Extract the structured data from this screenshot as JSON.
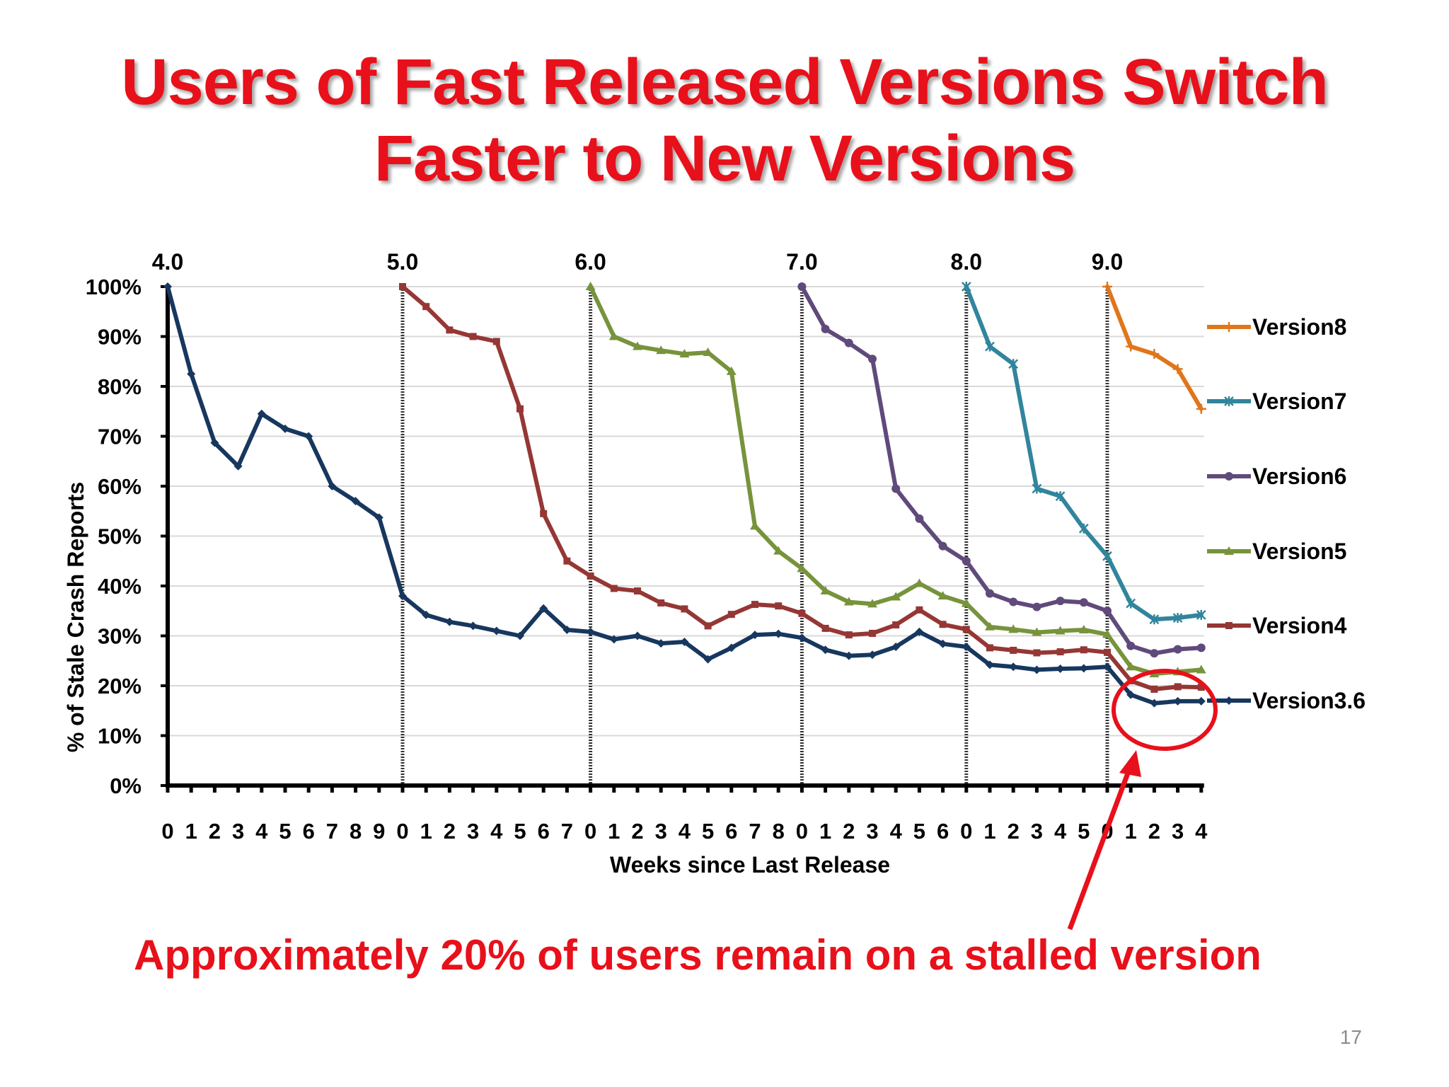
{
  "slide": {
    "title_line1": "Users of Fast Released Versions Switch",
    "title_line2": "Faster to New Versions",
    "annotation": "Approximately 20% of users remain on a stalled version",
    "slide_number": "17"
  },
  "colors": {
    "title": "#e8101a",
    "annotation": "#e8101a",
    "Version8": "#e0761c",
    "Version7": "#31859c",
    "Version6": "#604a7b",
    "Version5": "#77933c",
    "Version4": "#953735",
    "Version3.6": "#17375e"
  },
  "chart_data": {
    "type": "line",
    "title": "",
    "xlabel": "Weeks since Last Release",
    "ylabel": "% of Stale Crash Reports",
    "ylim": [
      0,
      100
    ],
    "yticks": [
      "0%",
      "10%",
      "20%",
      "30%",
      "40%",
      "50%",
      "60%",
      "70%",
      "80%",
      "90%",
      "100%"
    ],
    "x_tick_labels": [
      "0",
      "1",
      "2",
      "3",
      "4",
      "5",
      "6",
      "7",
      "8",
      "9",
      "0",
      "1",
      "2",
      "3",
      "4",
      "5",
      "6",
      "7",
      "0",
      "1",
      "2",
      "3",
      "4",
      "5",
      "6",
      "7",
      "8",
      "0",
      "1",
      "2",
      "3",
      "4",
      "5",
      "6",
      "0",
      "1",
      "2",
      "3",
      "4",
      "5",
      "0",
      "1",
      "2",
      "3",
      "4"
    ],
    "releases": [
      {
        "label": "4.0",
        "x": 0
      },
      {
        "label": "5.0",
        "x": 10
      },
      {
        "label": "6.0",
        "x": 18
      },
      {
        "label": "7.0",
        "x": 27
      },
      {
        "label": "8.0",
        "x": 34
      },
      {
        "label": "9.0",
        "x": 40
      }
    ],
    "grid": true,
    "legend_position": "right",
    "series": [
      {
        "name": "Version8",
        "start": 40,
        "marker": "plus",
        "values": [
          100,
          88,
          86.5,
          83.5,
          75.5
        ]
      },
      {
        "name": "Version7",
        "start": 34,
        "marker": "star",
        "values": [
          100,
          88,
          84.5,
          59.5,
          58,
          51.5,
          46,
          36.5,
          33.3,
          33.6,
          34.2
        ]
      },
      {
        "name": "Version6",
        "start": 27,
        "marker": "circle",
        "values": [
          100,
          91.5,
          88.7,
          85.5,
          59.5,
          53.5,
          48,
          45,
          38.5,
          36.8,
          35.8,
          37,
          36.7,
          35,
          28,
          26.5,
          27.3,
          27.6
        ]
      },
      {
        "name": "Version5",
        "start": 18,
        "marker": "triangle",
        "values": [
          100,
          90,
          88,
          87.2,
          86.5,
          86.8,
          83,
          52,
          47,
          43.5,
          39,
          36.8,
          36.4,
          37.8,
          40.5,
          38,
          36.5,
          31.8,
          31.3,
          30.7,
          31,
          31.2,
          30.3,
          23.8,
          22.4,
          22.8,
          23.2
        ]
      },
      {
        "name": "Version4",
        "start": 10,
        "marker": "square",
        "values": [
          100,
          96,
          91.3,
          90,
          89,
          75.5,
          54.5,
          45,
          42,
          39.5,
          39,
          36.6,
          35.4,
          32,
          34.3,
          36.3,
          36,
          34.5,
          31.5,
          30.2,
          30.5,
          32.2,
          35.2,
          32.3,
          31.3,
          27.6,
          27.1,
          26.6,
          26.8,
          27.2,
          26.7,
          21,
          19.3,
          19.8,
          19.7
        ]
      },
      {
        "name": "Version3.6",
        "start": 0,
        "marker": "diamond",
        "values": [
          100,
          82.5,
          68.7,
          64,
          74.5,
          71.5,
          70,
          60,
          57,
          53.7,
          38,
          34.2,
          32.8,
          32,
          31,
          30,
          35.5,
          31.2,
          30.8,
          29.3,
          30,
          28.5,
          28.8,
          25.3,
          27.6,
          30.2,
          30.4,
          29.6,
          27.2,
          26,
          26.2,
          27.8,
          30.8,
          28.4,
          27.8,
          24.2,
          23.8,
          23.2,
          23.4,
          23.5,
          23.8,
          18.2,
          16.5,
          16.9,
          16.9
        ]
      }
    ]
  }
}
